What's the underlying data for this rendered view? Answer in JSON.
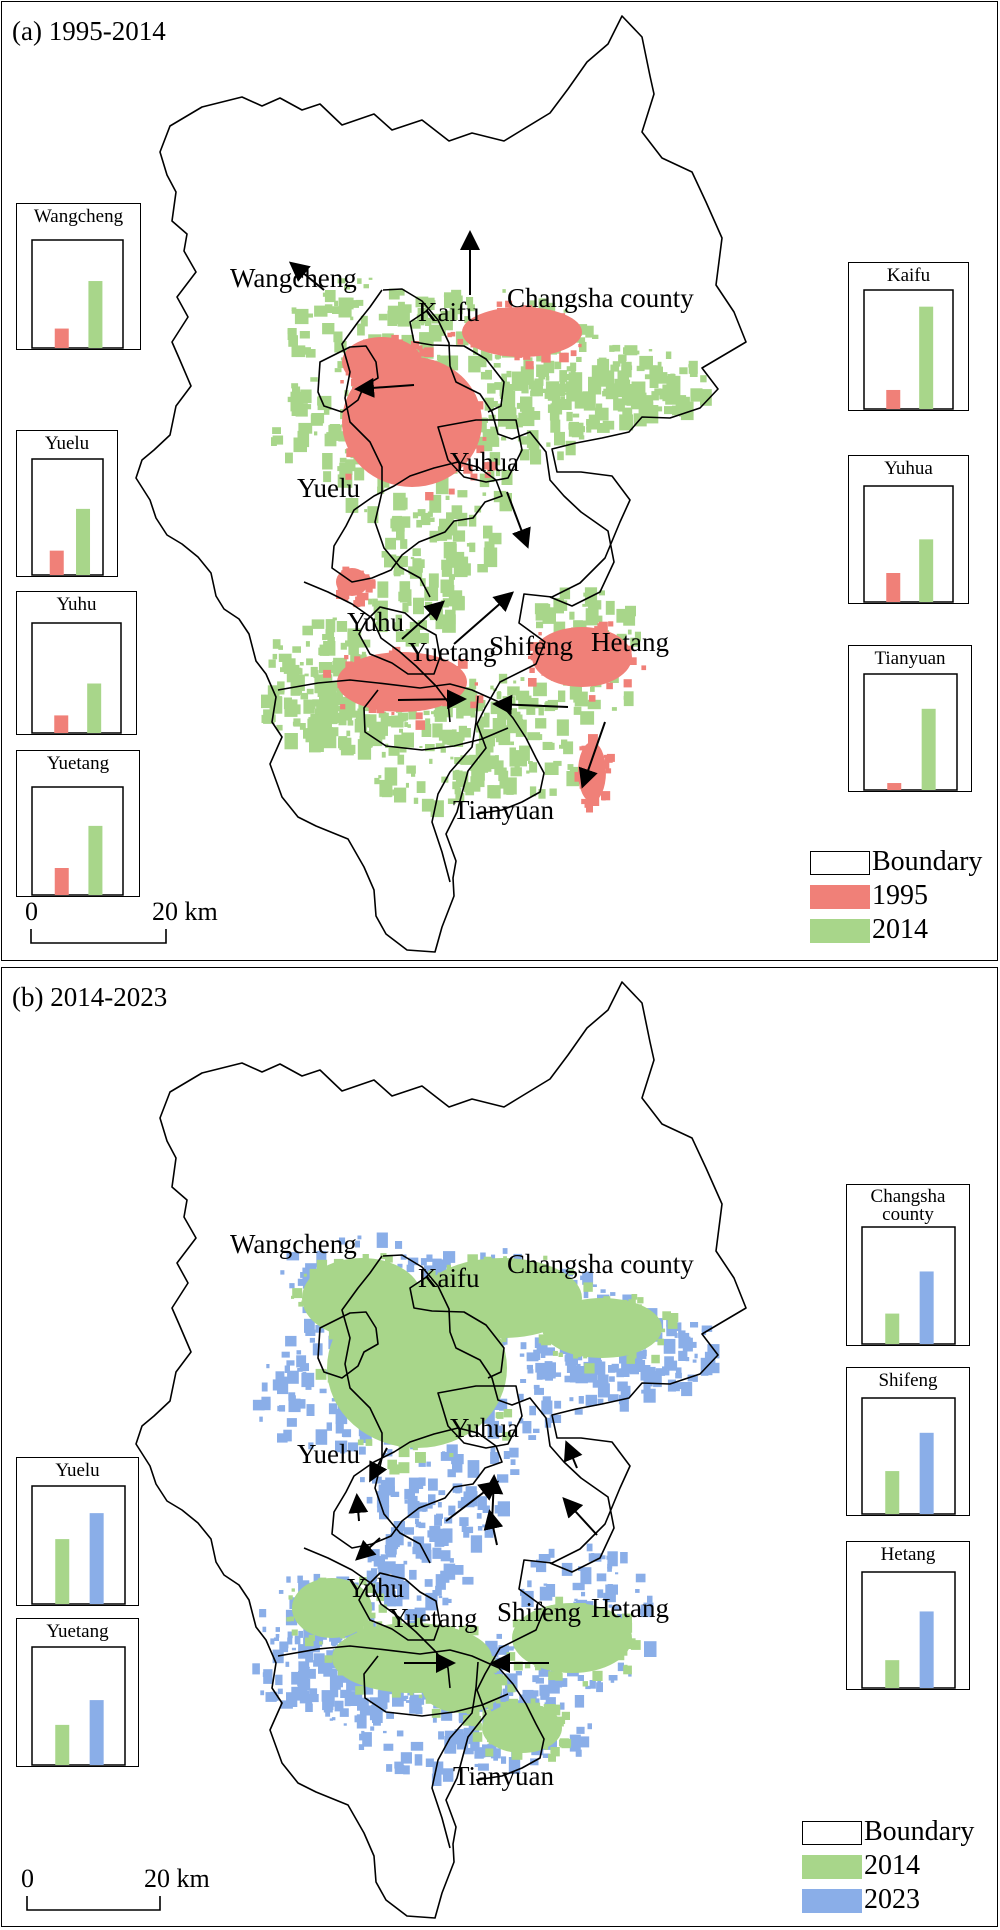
{
  "colors": {
    "base": "#f08078",
    "grow14": "#a8d68a",
    "grow23": "#8aaee8",
    "boundary": "#000000"
  },
  "panel_a": {
    "title": "(a) 1995-2014",
    "places": {
      "wangcheng": "Wangcheng",
      "kaifu": "Kaifu",
      "changsha_county": "Changsha county",
      "yuhua": "Yuhua",
      "yuelu": "Yuelu",
      "yuhu": "Yuhu",
      "yuetang": "Yuetang",
      "shifeng": "Shifeng",
      "hetang": "Hetang",
      "tianyuan": "Tianyuan"
    },
    "insets": [
      {
        "name": "Wangcheng",
        "values": [
          0.18,
          0.62
        ]
      },
      {
        "name": "Yuelu",
        "values": [
          0.21,
          0.57
        ]
      },
      {
        "name": "Yuhu",
        "values": [
          0.16,
          0.45
        ]
      },
      {
        "name": "Yuetang",
        "values": [
          0.25,
          0.64
        ]
      },
      {
        "name": "Kaifu",
        "values": [
          0.16,
          0.86
        ]
      },
      {
        "name": "Yuhua",
        "values": [
          0.25,
          0.54
        ]
      },
      {
        "name": "Tianyuan",
        "values": [
          0.06,
          0.7
        ]
      }
    ],
    "legend": {
      "boundary": "Boundary",
      "first": "1995",
      "second": "2014"
    },
    "scale": {
      "zero": "0",
      "distance": "20 km"
    }
  },
  "panel_b": {
    "title": "(b) 2014-2023",
    "places": {
      "wangcheng": "Wangcheng",
      "kaifu": "Kaifu",
      "changsha_county": "Changsha county",
      "yuhua": "Yuhua",
      "yuelu": "Yuelu",
      "yuhu": "Yuhu",
      "yuetang": "Yuetang",
      "shifeng": "Shifeng",
      "hetang": "Hetang",
      "tianyuan": "Tianyuan"
    },
    "insets": [
      {
        "name": "Yuelu",
        "values": [
          0.55,
          0.77
        ]
      },
      {
        "name": "Yuetang",
        "values": [
          0.34,
          0.55
        ]
      },
      {
        "name": "Changsha\ncounty",
        "values": [
          0.26,
          0.62
        ]
      },
      {
        "name": "Shifeng",
        "values": [
          0.37,
          0.7
        ]
      },
      {
        "name": "Hetang",
        "values": [
          0.24,
          0.66
        ]
      }
    ],
    "legend": {
      "boundary": "Boundary",
      "first": "2014",
      "second": "2023"
    },
    "scale": {
      "zero": "0",
      "distance": "20 km"
    }
  }
}
